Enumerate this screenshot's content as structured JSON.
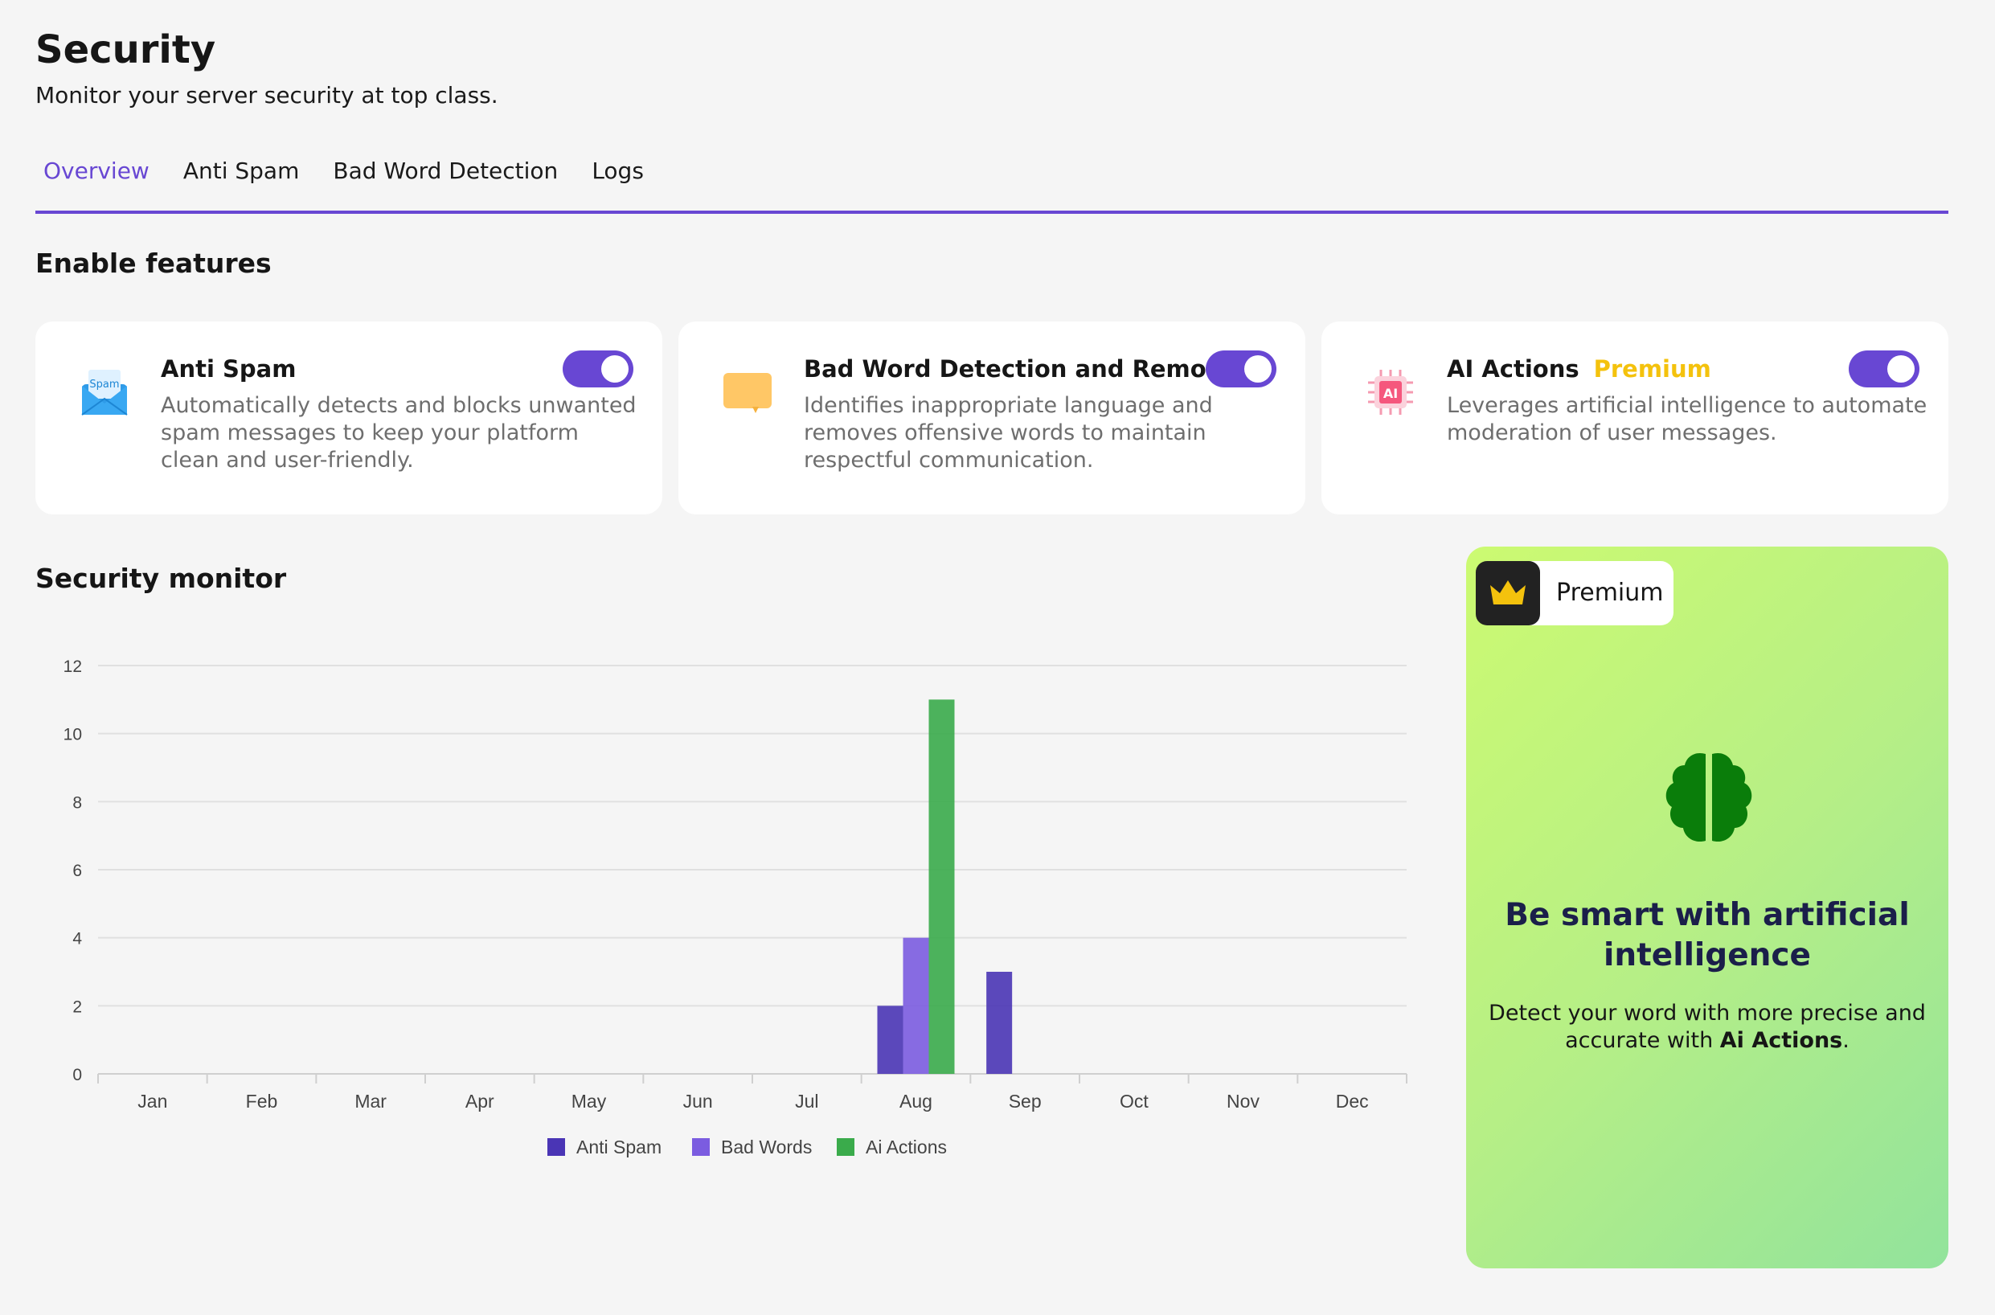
{
  "header": {
    "title": "Security",
    "subtitle": "Monitor your server security at top class."
  },
  "tabs": [
    {
      "label": "Overview",
      "active": true
    },
    {
      "label": "Anti Spam",
      "active": false
    },
    {
      "label": "Bad Word Detection",
      "active": false
    },
    {
      "label": "Logs",
      "active": false
    }
  ],
  "features": {
    "title": "Enable features",
    "cards": [
      {
        "icon": "spam-mail-icon",
        "icon_text": "Spam",
        "title": "Anti Spam",
        "badge": "",
        "description": "Automatically detects and blocks unwanted spam messages to keep your platform clean and user-friendly.",
        "enabled": true
      },
      {
        "icon": "chat-bubble-icon",
        "title": "Bad Word Detection and Removal",
        "badge": "",
        "description": "Identifies inappropriate language and removes offensive words to maintain respectful communication.",
        "enabled": true
      },
      {
        "icon": "ai-chip-icon",
        "icon_text": "AI",
        "title": "AI Actions",
        "badge": "Premium",
        "description": "Leverages artificial intelligence to automate moderation of user messages.",
        "enabled": true
      }
    ]
  },
  "monitor": {
    "title": "Security monitor"
  },
  "chart_data": {
    "type": "bar",
    "categories": [
      "Jan",
      "Feb",
      "Mar",
      "Apr",
      "May",
      "Jun",
      "Jul",
      "Aug",
      "Sep",
      "Oct",
      "Nov",
      "Dec"
    ],
    "series": [
      {
        "name": "Anti Spam",
        "color": "#4a35b5",
        "values": [
          0,
          0,
          0,
          0,
          0,
          0,
          0,
          2,
          3,
          0,
          0,
          0
        ]
      },
      {
        "name": "Bad Words",
        "color": "#7b5ce0",
        "values": [
          0,
          0,
          0,
          0,
          0,
          0,
          0,
          4,
          0,
          0,
          0,
          0
        ]
      },
      {
        "name": "Ai Actions",
        "color": "#3aab4b",
        "values": [
          0,
          0,
          0,
          0,
          0,
          0,
          0,
          11,
          0,
          0,
          0,
          0
        ]
      }
    ],
    "yticks": [
      0,
      2,
      4,
      6,
      8,
      10,
      12
    ],
    "ylim": [
      0,
      12
    ],
    "grid": true,
    "legend_position": "bottom"
  },
  "premium": {
    "label": "Premium",
    "heading": "Be smart with artificial intelligence",
    "desc_prefix": "Detect your word with more precise and accurate with ",
    "desc_bold": "Ai Actions",
    "desc_suffix": ".",
    "crown_color": "#f4c20d",
    "brain_color": "#0a7d0a"
  }
}
